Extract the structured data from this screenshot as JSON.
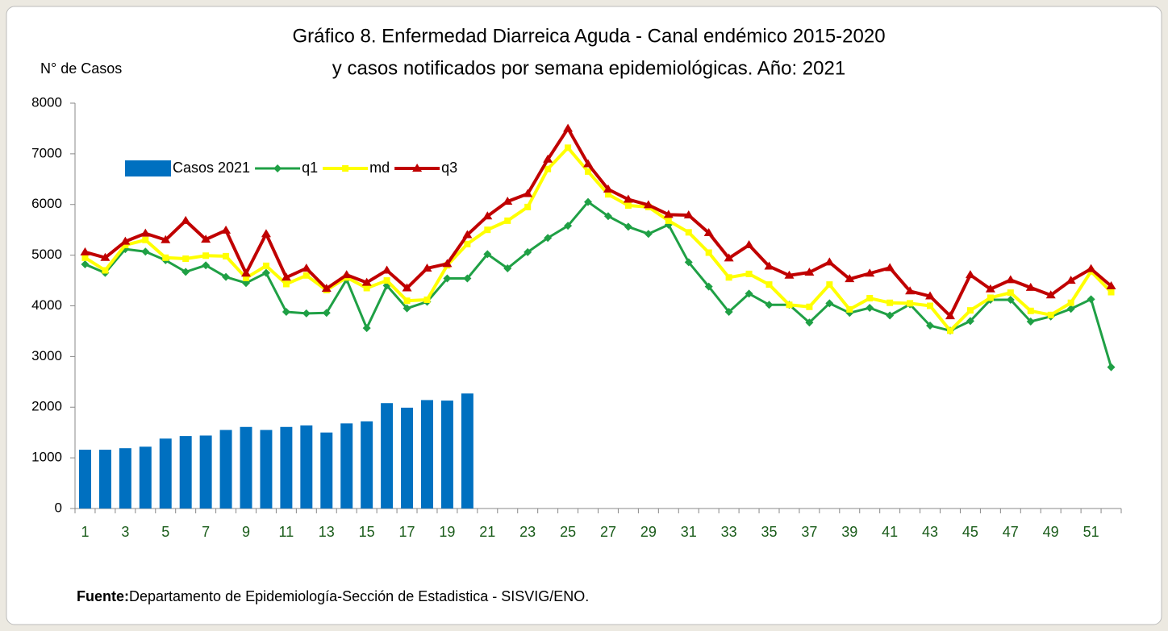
{
  "chart_data": {
    "type": "bar_line",
    "title": [
      "Gráfico 8. Enfermedad Diarreica Aguda - Canal endémico 2015-2020",
      "y casos notificados por semana epidemiológicas.  Año: 2021"
    ],
    "y_label": "N° de Casos",
    "source": {
      "label": "Fuente:",
      "text": "Departamento de Epidemiología-Sección de Estadistica - SISVIG/ENO."
    },
    "categories": [
      1,
      null,
      3,
      null,
      5,
      null,
      7,
      null,
      9,
      null,
      11,
      null,
      13,
      null,
      15,
      null,
      17,
      null,
      19,
      null,
      21,
      null,
      23,
      null,
      25,
      null,
      27,
      null,
      29,
      null,
      31,
      null,
      33,
      null,
      35,
      null,
      37,
      null,
      39,
      null,
      41,
      null,
      43,
      null,
      45,
      null,
      47,
      null,
      49,
      null,
      51,
      null
    ],
    "series": [
      {
        "name": "Casos 2021",
        "kind": "bar",
        "color": "#0070c0",
        "values": [
          1160,
          1160,
          1190,
          1220,
          1380,
          1430,
          1440,
          1550,
          1610,
          1550,
          1610,
          1640,
          1500,
          1680,
          1720,
          2080,
          1990,
          2140,
          2130,
          2270,
          null,
          null,
          null,
          null,
          null,
          null,
          null,
          null,
          null,
          null,
          null,
          null,
          null,
          null,
          null,
          null,
          null,
          null,
          null,
          null,
          null,
          null,
          null,
          null,
          null,
          null,
          null,
          null,
          null,
          null,
          null,
          null
        ]
      },
      {
        "name": "q1",
        "kind": "line",
        "marker": "diamond",
        "color": "#1fa045",
        "values": [
          4820,
          4650,
          5120,
          5070,
          4900,
          4670,
          4800,
          4570,
          4450,
          4650,
          3880,
          3850,
          3860,
          4520,
          3560,
          4400,
          3950,
          4080,
          4540,
          4540,
          5020,
          4740,
          5060,
          5340,
          5580,
          6050,
          5770,
          5560,
          5420,
          5600,
          4860,
          4380,
          3880,
          4240,
          4020,
          4020,
          3670,
          4050,
          3860,
          3960,
          3810,
          4030,
          3610,
          3510,
          3700,
          4120,
          4120,
          3690,
          3790,
          3940,
          4130,
          2790
        ]
      },
      {
        "name": "md",
        "kind": "line",
        "marker": "square",
        "color": "#ffff00",
        "values": [
          4950,
          4700,
          5200,
          5300,
          4950,
          4930,
          4990,
          4980,
          4550,
          4790,
          4430,
          4600,
          4310,
          4560,
          4350,
          4500,
          4100,
          4120,
          4800,
          5220,
          5500,
          5680,
          5950,
          6700,
          7120,
          6650,
          6200,
          5980,
          5950,
          5680,
          5450,
          5050,
          4560,
          4630,
          4420,
          4020,
          3980,
          4420,
          3930,
          4150,
          4060,
          4050,
          4000,
          3510,
          3910,
          4160,
          4260,
          3900,
          3820,
          4060,
          4680,
          4270
        ]
      },
      {
        "name": "q3",
        "kind": "line",
        "marker": "triangle",
        "color": "#c00000",
        "values": [
          5060,
          4950,
          5270,
          5430,
          5300,
          5680,
          5310,
          5490,
          4640,
          5420,
          4560,
          4740,
          4340,
          4610,
          4460,
          4700,
          4350,
          4740,
          4830,
          5400,
          5770,
          6060,
          6210,
          6890,
          7500,
          6800,
          6300,
          6100,
          5990,
          5800,
          5790,
          5440,
          4940,
          5200,
          4780,
          4600,
          4660,
          4860,
          4530,
          4640,
          4750,
          4290,
          4190,
          3800,
          4610,
          4330,
          4510,
          4360,
          4210,
          4500,
          4730,
          4390
        ]
      }
    ],
    "ylim": [
      0,
      8000
    ],
    "yticks": [
      0,
      1000,
      2000,
      3000,
      4000,
      5000,
      6000,
      7000,
      8000
    ],
    "grid": false
  }
}
